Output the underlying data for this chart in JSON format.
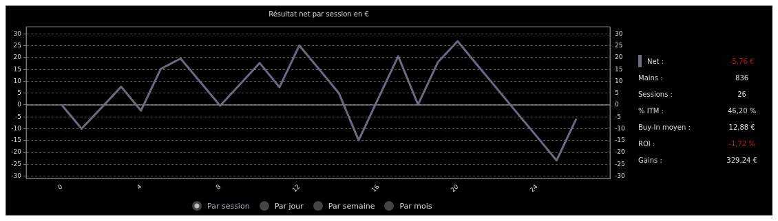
{
  "chart_data": [
    {
      "type": "line",
      "title": "Résultat net par session en €",
      "x": [
        0,
        1,
        2,
        3,
        4,
        5,
        6,
        7,
        8,
        9,
        10,
        11,
        12,
        13,
        14,
        15,
        16,
        17,
        18,
        19,
        20,
        21,
        22,
        23,
        24,
        25,
        26
      ],
      "series": [
        {
          "name": "Net :",
          "color": "#6b6a80",
          "values": [
            0,
            -10,
            -1.2,
            7.7,
            -2.4,
            15.2,
            19.6,
            9.7,
            -0.3,
            8.7,
            17.7,
            7.5,
            25.1,
            15.1,
            5.0,
            -14.9,
            2.9,
            20.6,
            0.2,
            18.0,
            26.9,
            16.8,
            6.8,
            -3.3,
            -13.3,
            -23.4,
            -5.8
          ]
        }
      ],
      "xlim": [
        -1.8,
        27.7
      ],
      "xticks": [
        0,
        4,
        8,
        12,
        16,
        20,
        24
      ],
      "ylim": [
        -31,
        33
      ],
      "yticks": [
        -30,
        -25,
        -20,
        -15,
        -10,
        -5,
        0,
        5,
        10,
        15,
        20,
        25,
        30
      ],
      "y2lim": [
        -31,
        33
      ],
      "y2ticks": [
        -30,
        -25,
        -20,
        -15,
        -10,
        -5,
        0,
        5,
        10,
        15,
        20,
        25,
        30
      ],
      "grid": "y",
      "legend": "right",
      "marker": "none",
      "line_style": "solid",
      "ref_lines": [
        {
          "axis": "y",
          "value": 0,
          "color": "#bbbbbb"
        }
      ],
      "annotations": [
        "Par session",
        "Par jour",
        "Par semaine",
        "Par mois"
      ]
    },
    {
      "type": "other",
      "annotations": [
        "-5,76 €",
        "Mains :",
        "836",
        "Sessions :",
        "26",
        "% ITM :",
        "46,20 %",
        "Buy-In moyen :",
        "12,88 €",
        "ROI :",
        "-1,72 %",
        "Gains :",
        "329,24 €"
      ]
    }
  ]
}
